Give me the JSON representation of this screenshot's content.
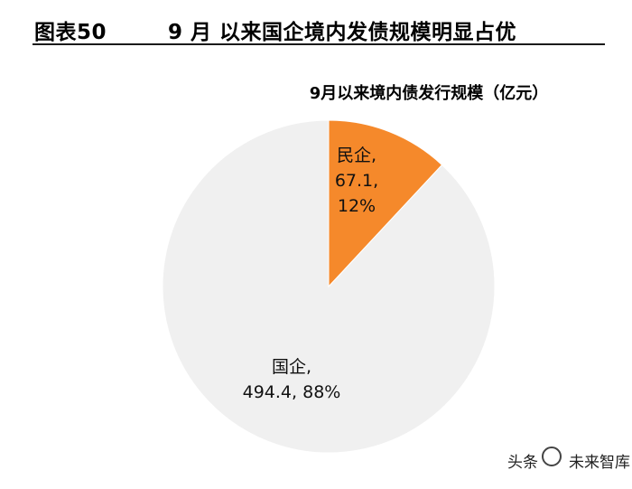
{
  "header": {
    "label": "图表50",
    "title": "9 月 以来国企境内发债规模明显占优"
  },
  "chart_data": {
    "type": "pie",
    "title": "9月以来境内债发行规模（亿元）",
    "slices": [
      {
        "name": "民企",
        "value": 67.1,
        "percent": "12%",
        "color": "#f5892b"
      },
      {
        "name": "国企",
        "value": 494.4,
        "percent": "88%",
        "color": "#f0f0f0"
      }
    ]
  },
  "watermark": {
    "prefix": "头条",
    "name": "未来智库"
  }
}
